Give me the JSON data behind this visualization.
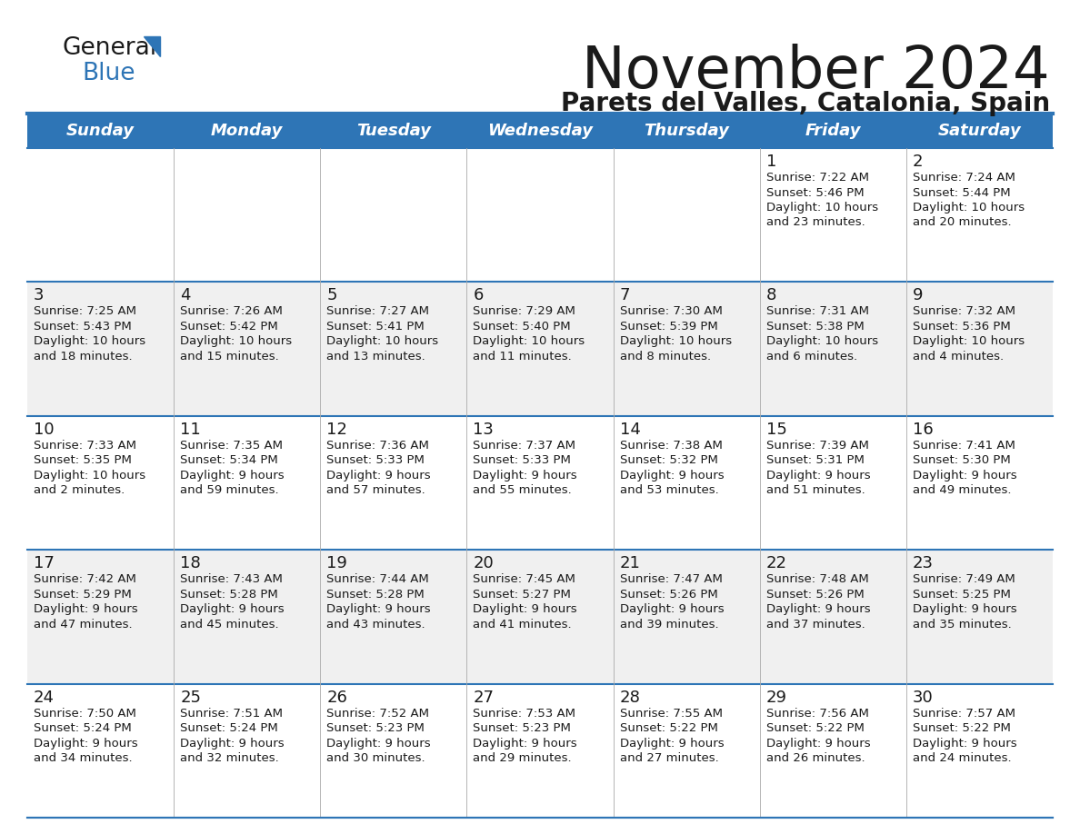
{
  "title": "November 2024",
  "subtitle": "Parets del Valles, Catalonia, Spain",
  "days_of_week": [
    "Sunday",
    "Monday",
    "Tuesday",
    "Wednesday",
    "Thursday",
    "Friday",
    "Saturday"
  ],
  "header_bg": "#2E75B6",
  "header_text_color": "#FFFFFF",
  "row_bg_odd": "#FFFFFF",
  "row_bg_even": "#F0F0F0",
  "cell_text_color": "#1A1A1A",
  "border_color": "#2E75B6",
  "title_fontsize": 46,
  "subtitle_fontsize": 20,
  "day_num_fontsize": 13,
  "cell_text_fontsize": 9.5,
  "header_fontsize": 13,
  "calendar_data": [
    [
      null,
      null,
      null,
      null,
      null,
      {
        "day": "1",
        "sunrise": "7:22 AM",
        "sunset": "5:46 PM",
        "daylight1": "Daylight: 10 hours",
        "daylight2": "and 23 minutes."
      },
      {
        "day": "2",
        "sunrise": "7:24 AM",
        "sunset": "5:44 PM",
        "daylight1": "Daylight: 10 hours",
        "daylight2": "and 20 minutes."
      }
    ],
    [
      {
        "day": "3",
        "sunrise": "7:25 AM",
        "sunset": "5:43 PM",
        "daylight1": "Daylight: 10 hours",
        "daylight2": "and 18 minutes."
      },
      {
        "day": "4",
        "sunrise": "7:26 AM",
        "sunset": "5:42 PM",
        "daylight1": "Daylight: 10 hours",
        "daylight2": "and 15 minutes."
      },
      {
        "day": "5",
        "sunrise": "7:27 AM",
        "sunset": "5:41 PM",
        "daylight1": "Daylight: 10 hours",
        "daylight2": "and 13 minutes."
      },
      {
        "day": "6",
        "sunrise": "7:29 AM",
        "sunset": "5:40 PM",
        "daylight1": "Daylight: 10 hours",
        "daylight2": "and 11 minutes."
      },
      {
        "day": "7",
        "sunrise": "7:30 AM",
        "sunset": "5:39 PM",
        "daylight1": "Daylight: 10 hours",
        "daylight2": "and 8 minutes."
      },
      {
        "day": "8",
        "sunrise": "7:31 AM",
        "sunset": "5:38 PM",
        "daylight1": "Daylight: 10 hours",
        "daylight2": "and 6 minutes."
      },
      {
        "day": "9",
        "sunrise": "7:32 AM",
        "sunset": "5:36 PM",
        "daylight1": "Daylight: 10 hours",
        "daylight2": "and 4 minutes."
      }
    ],
    [
      {
        "day": "10",
        "sunrise": "7:33 AM",
        "sunset": "5:35 PM",
        "daylight1": "Daylight: 10 hours",
        "daylight2": "and 2 minutes."
      },
      {
        "day": "11",
        "sunrise": "7:35 AM",
        "sunset": "5:34 PM",
        "daylight1": "Daylight: 9 hours",
        "daylight2": "and 59 minutes."
      },
      {
        "day": "12",
        "sunrise": "7:36 AM",
        "sunset": "5:33 PM",
        "daylight1": "Daylight: 9 hours",
        "daylight2": "and 57 minutes."
      },
      {
        "day": "13",
        "sunrise": "7:37 AM",
        "sunset": "5:33 PM",
        "daylight1": "Daylight: 9 hours",
        "daylight2": "and 55 minutes."
      },
      {
        "day": "14",
        "sunrise": "7:38 AM",
        "sunset": "5:32 PM",
        "daylight1": "Daylight: 9 hours",
        "daylight2": "and 53 minutes."
      },
      {
        "day": "15",
        "sunrise": "7:39 AM",
        "sunset": "5:31 PM",
        "daylight1": "Daylight: 9 hours",
        "daylight2": "and 51 minutes."
      },
      {
        "day": "16",
        "sunrise": "7:41 AM",
        "sunset": "5:30 PM",
        "daylight1": "Daylight: 9 hours",
        "daylight2": "and 49 minutes."
      }
    ],
    [
      {
        "day": "17",
        "sunrise": "7:42 AM",
        "sunset": "5:29 PM",
        "daylight1": "Daylight: 9 hours",
        "daylight2": "and 47 minutes."
      },
      {
        "day": "18",
        "sunrise": "7:43 AM",
        "sunset": "5:28 PM",
        "daylight1": "Daylight: 9 hours",
        "daylight2": "and 45 minutes."
      },
      {
        "day": "19",
        "sunrise": "7:44 AM",
        "sunset": "5:28 PM",
        "daylight1": "Daylight: 9 hours",
        "daylight2": "and 43 minutes."
      },
      {
        "day": "20",
        "sunrise": "7:45 AM",
        "sunset": "5:27 PM",
        "daylight1": "Daylight: 9 hours",
        "daylight2": "and 41 minutes."
      },
      {
        "day": "21",
        "sunrise": "7:47 AM",
        "sunset": "5:26 PM",
        "daylight1": "Daylight: 9 hours",
        "daylight2": "and 39 minutes."
      },
      {
        "day": "22",
        "sunrise": "7:48 AM",
        "sunset": "5:26 PM",
        "daylight1": "Daylight: 9 hours",
        "daylight2": "and 37 minutes."
      },
      {
        "day": "23",
        "sunrise": "7:49 AM",
        "sunset": "5:25 PM",
        "daylight1": "Daylight: 9 hours",
        "daylight2": "and 35 minutes."
      }
    ],
    [
      {
        "day": "24",
        "sunrise": "7:50 AM",
        "sunset": "5:24 PM",
        "daylight1": "Daylight: 9 hours",
        "daylight2": "and 34 minutes."
      },
      {
        "day": "25",
        "sunrise": "7:51 AM",
        "sunset": "5:24 PM",
        "daylight1": "Daylight: 9 hours",
        "daylight2": "and 32 minutes."
      },
      {
        "day": "26",
        "sunrise": "7:52 AM",
        "sunset": "5:23 PM",
        "daylight1": "Daylight: 9 hours",
        "daylight2": "and 30 minutes."
      },
      {
        "day": "27",
        "sunrise": "7:53 AM",
        "sunset": "5:23 PM",
        "daylight1": "Daylight: 9 hours",
        "daylight2": "and 29 minutes."
      },
      {
        "day": "28",
        "sunrise": "7:55 AM",
        "sunset": "5:22 PM",
        "daylight1": "Daylight: 9 hours",
        "daylight2": "and 27 minutes."
      },
      {
        "day": "29",
        "sunrise": "7:56 AM",
        "sunset": "5:22 PM",
        "daylight1": "Daylight: 9 hours",
        "daylight2": "and 26 minutes."
      },
      {
        "day": "30",
        "sunrise": "7:57 AM",
        "sunset": "5:22 PM",
        "daylight1": "Daylight: 9 hours",
        "daylight2": "and 24 minutes."
      }
    ]
  ]
}
